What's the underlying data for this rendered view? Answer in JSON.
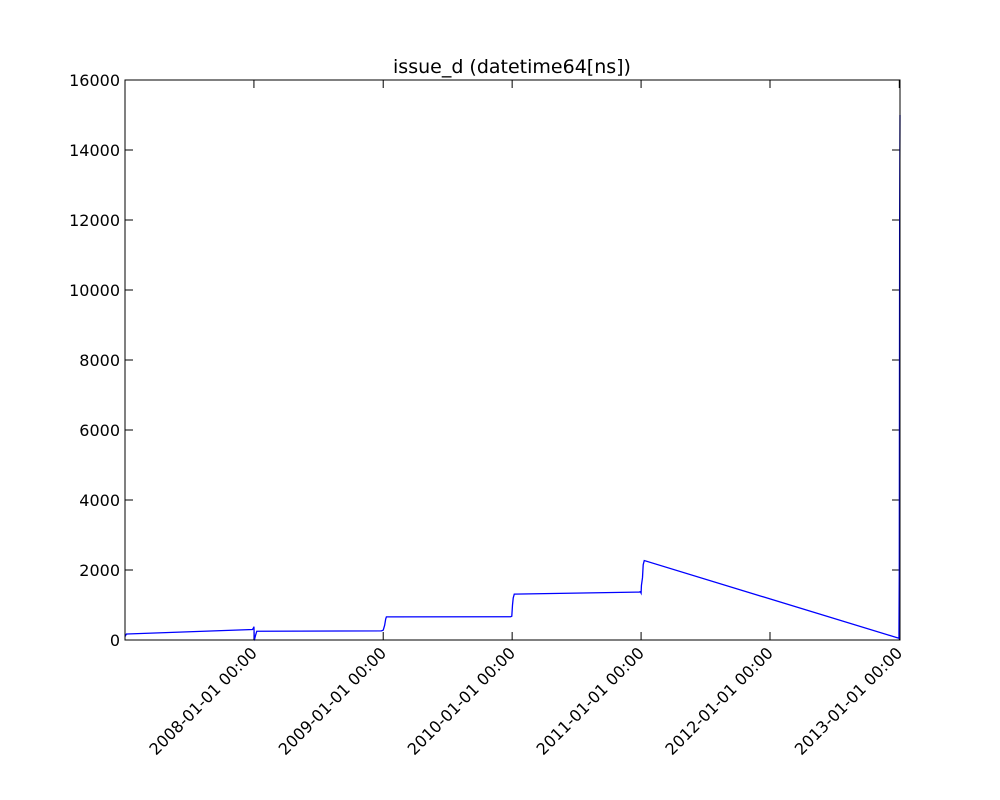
{
  "chart_data": {
    "type": "line",
    "title": "issue_d (datetime64[ns])",
    "xlabel": "",
    "ylabel": "",
    "x_axis_type": "datetime",
    "xlim": [
      "2007-01-01",
      "2013-01-03"
    ],
    "ylim": [
      0,
      16000
    ],
    "grid": false,
    "legend": "none",
    "line_color": "#0000ff",
    "x_tick_labels": [
      "2008-01-01 00:00",
      "2009-01-01 00:00",
      "2010-01-01 00:00",
      "2011-01-01 00:00",
      "2012-01-01 00:00",
      "2013-01-01 00:00"
    ],
    "y_tick_labels": [
      "0",
      "2000",
      "4000",
      "6000",
      "8000",
      "10000",
      "12000",
      "14000",
      "16000"
    ],
    "series": [
      {
        "points": [
          [
            "2007-01-01",
            100
          ],
          [
            "2007-01-05",
            170
          ],
          [
            "2007-12-28",
            300
          ],
          [
            "2007-12-31",
            350
          ],
          [
            "2008-01-01",
            380
          ],
          [
            "2008-01-02",
            60
          ],
          [
            "2008-01-03",
            30
          ],
          [
            "2008-01-06",
            150
          ],
          [
            "2008-01-09",
            250
          ],
          [
            "2008-12-27",
            260
          ],
          [
            "2009-01-01",
            280
          ],
          [
            "2009-01-05",
            420
          ],
          [
            "2009-01-08",
            600
          ],
          [
            "2009-01-10",
            660
          ],
          [
            "2009-12-28",
            665
          ],
          [
            "2009-12-31",
            680
          ],
          [
            "2010-01-02",
            1000
          ],
          [
            "2010-01-04",
            1200
          ],
          [
            "2010-01-07",
            1310
          ],
          [
            "2010-12-27",
            1370
          ],
          [
            "2010-12-30",
            1380
          ],
          [
            "2011-01-01",
            1340
          ],
          [
            "2011-01-02",
            1560
          ],
          [
            "2011-01-05",
            1780
          ],
          [
            "2011-01-07",
            2150
          ],
          [
            "2011-01-10",
            2270
          ],
          [
            "2012-12-31",
            50
          ],
          [
            "2013-01-01",
            2000
          ],
          [
            "2013-01-02",
            12000
          ],
          [
            "2013-01-03",
            15000
          ]
        ]
      }
    ]
  }
}
